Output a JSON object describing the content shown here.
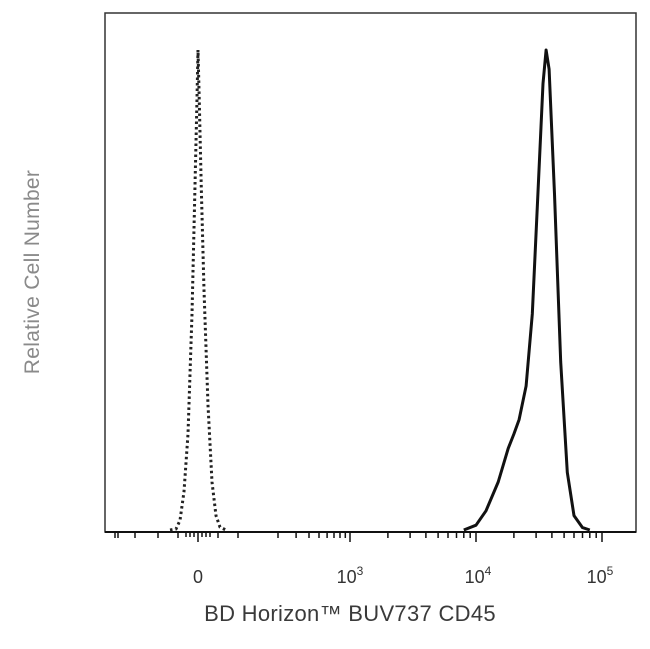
{
  "chart_data": {
    "type": "line",
    "xlabel": "BD Horizon™ BUV737 CD45",
    "ylabel": "Relative Cell Number",
    "x_scale": "biexponential (linear near 0, log above ~10^3)",
    "x_tick_labels": [
      {
        "value": 0,
        "base": "0",
        "exp": ""
      },
      {
        "value": 1000,
        "base": "10",
        "exp": "3"
      },
      {
        "value": 10000,
        "base": "10",
        "exp": "4"
      },
      {
        "value": 100000,
        "base": "10",
        "exp": "5"
      }
    ],
    "y_range": [
      0,
      1.1
    ],
    "series": [
      {
        "style": "dotted",
        "color": "#222222",
        "points": [
          [
            -70,
            0
          ],
          [
            -55,
            0.002
          ],
          [
            -45,
            0.02
          ],
          [
            -35,
            0.08
          ],
          [
            -25,
            0.2
          ],
          [
            -15,
            0.45
          ],
          [
            -8,
            0.7
          ],
          [
            -3,
            0.88
          ],
          [
            0,
            1.0
          ],
          [
            3,
            0.9
          ],
          [
            8,
            0.72
          ],
          [
            15,
            0.5
          ],
          [
            25,
            0.26
          ],
          [
            35,
            0.1
          ],
          [
            45,
            0.03
          ],
          [
            55,
            0.006
          ],
          [
            70,
            0
          ]
        ]
      },
      {
        "style": "solid",
        "color": "#111111",
        "points": [
          [
            8000,
            0
          ],
          [
            10000,
            0.01
          ],
          [
            12000,
            0.04
          ],
          [
            15000,
            0.1
          ],
          [
            18000,
            0.17
          ],
          [
            20000,
            0.2
          ],
          [
            22000,
            0.23
          ],
          [
            25000,
            0.3
          ],
          [
            28000,
            0.45
          ],
          [
            31000,
            0.7
          ],
          [
            34000,
            0.93
          ],
          [
            36000,
            1.0
          ],
          [
            38000,
            0.96
          ],
          [
            42000,
            0.7
          ],
          [
            47000,
            0.35
          ],
          [
            53000,
            0.12
          ],
          [
            60000,
            0.03
          ],
          [
            70000,
            0.005
          ],
          [
            80000,
            0
          ]
        ]
      }
    ]
  }
}
